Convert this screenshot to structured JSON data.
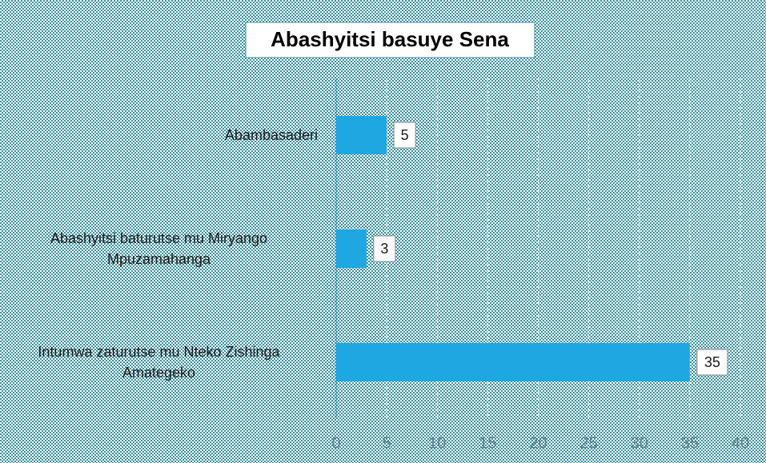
{
  "chart_data": {
    "type": "bar",
    "orientation": "horizontal",
    "title": "Abashyitsi basuye Sena",
    "categories": [
      "Abambasaderi",
      "Abashyitsi baturutse mu Miryango Mpuzamahanga",
      "Intumwa zaturutse mu Nteko Zishinga Amategeko"
    ],
    "values": [
      5,
      3,
      35
    ],
    "color": "#1ea7e1",
    "xlim": [
      0,
      40
    ],
    "xticks": [
      0,
      5,
      10,
      15,
      20,
      25,
      30,
      35,
      40
    ],
    "grid": true
  }
}
